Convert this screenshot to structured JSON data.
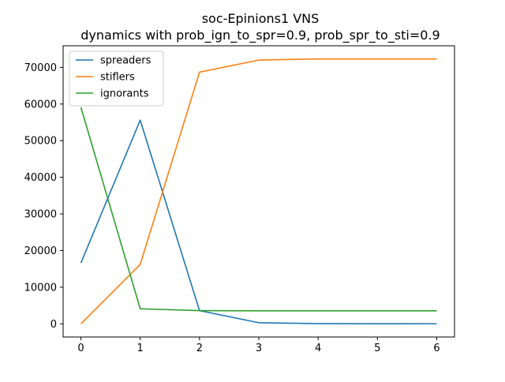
{
  "chart_data": {
    "type": "line",
    "title": "soc-Epinions1 VNS",
    "subtitle": "dynamics with prob_ign_to_spr=0.9, prob_spr_to_sti=0.9",
    "xlabel": "",
    "ylabel": "",
    "x": [
      0,
      1,
      2,
      3,
      4,
      5,
      6
    ],
    "xlim": [
      -0.3,
      6.3
    ],
    "ylim": [
      -3600,
      75900
    ],
    "xticks": [
      0,
      1,
      2,
      3,
      4,
      5,
      6
    ],
    "yticks": [
      0,
      10000,
      20000,
      30000,
      40000,
      50000,
      60000,
      70000
    ],
    "grid": false,
    "legend_position": "upper-left",
    "series": [
      {
        "name": "spreaders",
        "color": "#1f77b4",
        "values": [
          16600,
          55600,
          3600,
          300,
          50,
          20,
          10
        ]
      },
      {
        "name": "stiflers",
        "color": "#ff7f0e",
        "values": [
          0,
          16200,
          68700,
          72000,
          72300,
          72300,
          72300
        ]
      },
      {
        "name": "ignorants",
        "color": "#2ca02c",
        "values": [
          59100,
          4100,
          3600,
          3550,
          3550,
          3550,
          3550
        ]
      }
    ]
  }
}
